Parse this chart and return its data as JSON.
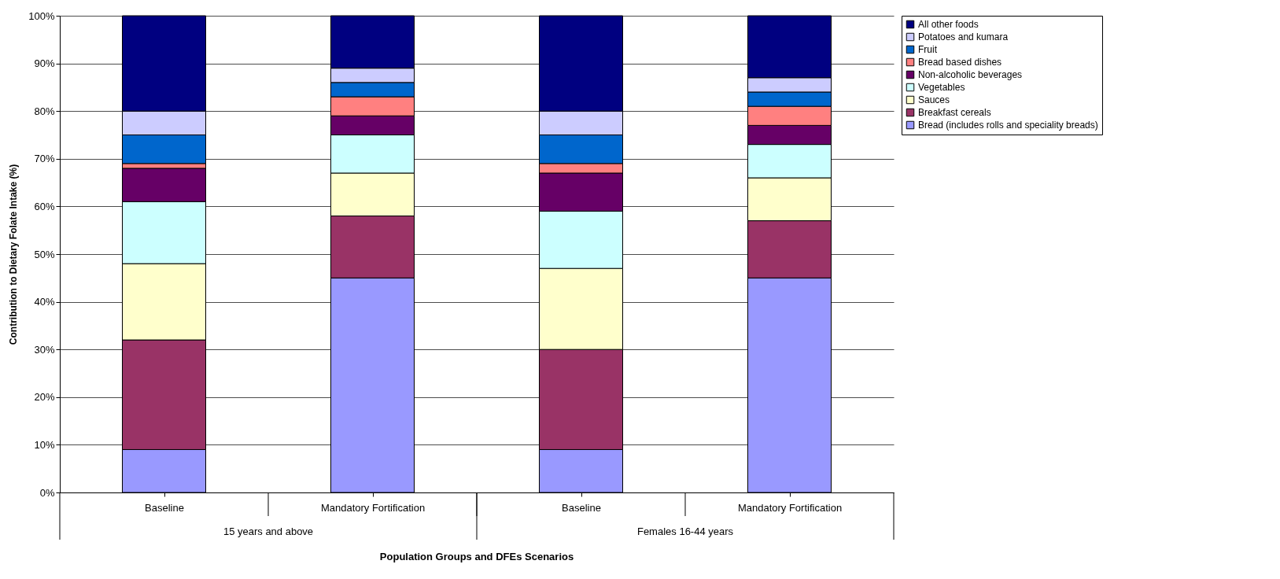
{
  "chart_data": {
    "type": "bar",
    "stacked": true,
    "categories": [
      "Baseline",
      "Mandatory Fortification",
      "Baseline",
      "Mandatory Fortification"
    ],
    "xlabel": "Population Groups and DFEs Scenarios",
    "ylabel": "Contribution to Dietary Folate Intake (%)",
    "annotations": [
      "15 years and above",
      "Females 16-44 years"
    ],
    "ylim": [
      0,
      100
    ],
    "yticks": [
      {
        "value": 0,
        "label": "0%"
      },
      {
        "value": 10,
        "label": "10%"
      },
      {
        "value": 20,
        "label": "20%"
      },
      {
        "value": 30,
        "label": "30%"
      },
      {
        "value": 40,
        "label": "40%"
      },
      {
        "value": 50,
        "label": "50%"
      },
      {
        "value": 60,
        "label": "60%"
      },
      {
        "value": 70,
        "label": "70%"
      },
      {
        "value": 80,
        "label": "80%"
      },
      {
        "value": 90,
        "label": "90%"
      },
      {
        "value": 100,
        "label": "100%"
      }
    ],
    "grid": "y",
    "legend": "right",
    "series": [
      {
        "name": "Bread (includes rolls and speciality breads)",
        "color": "#9999ff",
        "values": [
          9,
          45,
          9,
          45
        ]
      },
      {
        "name": "Breakfast cereals",
        "color": "#993366",
        "values": [
          23,
          13,
          21,
          12
        ]
      },
      {
        "name": "Sauces",
        "color": "#ffffcc",
        "values": [
          16,
          9,
          17,
          9
        ]
      },
      {
        "name": "Vegetables",
        "color": "#ccffff",
        "values": [
          13,
          8,
          12,
          7
        ]
      },
      {
        "name": "Non-alcoholic beverages",
        "color": "#660066",
        "values": [
          7,
          4,
          8,
          4
        ]
      },
      {
        "name": "Bread based dishes",
        "color": "#ff8080",
        "values": [
          1,
          4,
          2,
          4
        ]
      },
      {
        "name": "Fruit",
        "color": "#0066cc",
        "values": [
          6,
          3,
          6,
          3
        ]
      },
      {
        "name": "Potatoes and kumara",
        "color": "#ccccff",
        "values": [
          5,
          3,
          5,
          3
        ]
      },
      {
        "name": "All other foods",
        "color": "#000080",
        "values": [
          20,
          11,
          20,
          13
        ]
      }
    ]
  }
}
